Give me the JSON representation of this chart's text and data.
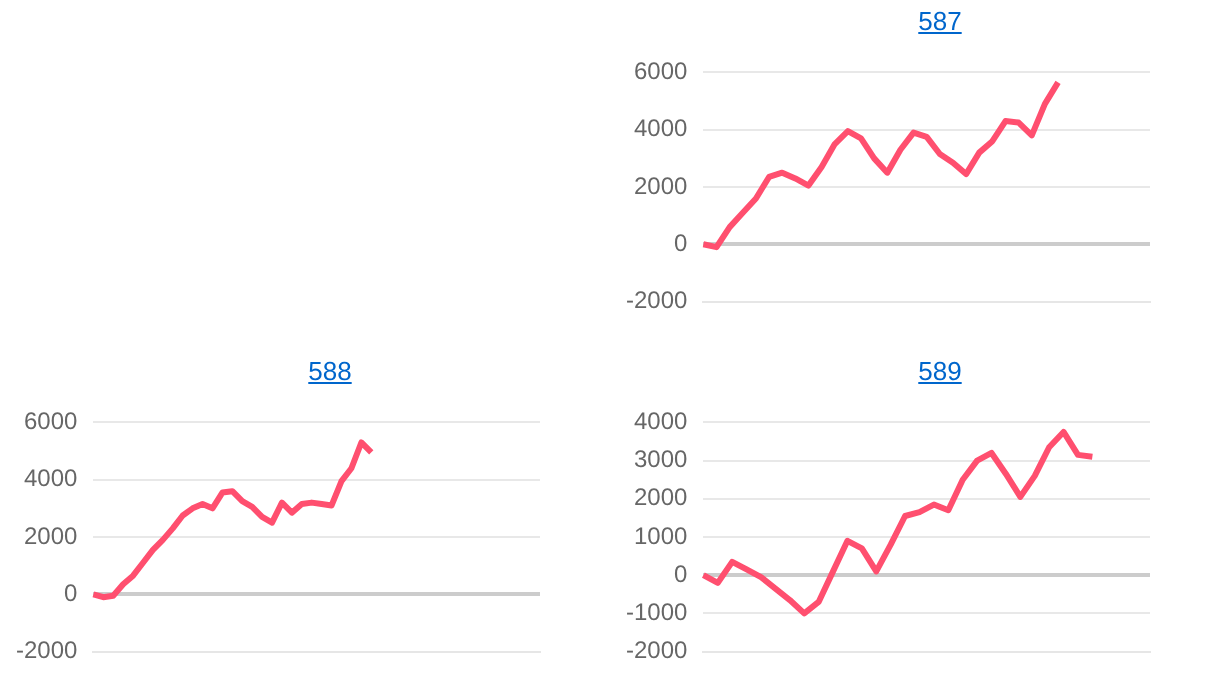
{
  "chart_data": [
    {
      "type": "line",
      "title": "587",
      "categories": [
        null,
        null,
        null,
        null,
        null,
        null,
        null,
        null,
        null,
        null,
        null,
        null,
        null,
        null,
        null,
        null,
        null,
        null,
        null,
        null,
        null,
        null,
        null,
        null,
        null,
        null,
        null,
        null,
        null,
        null,
        null,
        null,
        null,
        null,
        null
      ],
      "series": [
        {
          "color": "#ff4f6f",
          "values": [
            0,
            -100,
            600,
            1100,
            1600,
            2350,
            2500,
            2300,
            2050,
            2700,
            3500,
            3950,
            3700,
            3000,
            2500,
            3300,
            3900,
            3750,
            3150,
            2850,
            2450,
            3200,
            3600,
            4300,
            4250,
            3800,
            4900,
            5650,
            null,
            null,
            null,
            null,
            null,
            null,
            null
          ]
        }
      ],
      "ylim": [
        -2000,
        6000
      ],
      "yticks": [
        -2000,
        0,
        2000,
        4000,
        6000
      ],
      "grid": "y",
      "tick_labels": "y",
      "marker": "none"
    },
    {
      "type": "line",
      "title": "588",
      "categories": [
        null,
        null,
        null,
        null,
        null,
        null,
        null,
        null,
        null,
        null,
        null,
        null,
        null,
        null,
        null,
        null,
        null,
        null,
        null,
        null,
        null,
        null,
        null,
        null,
        null,
        null,
        null,
        null,
        null,
        null,
        null,
        null,
        null,
        null,
        null,
        null,
        null,
        null,
        null,
        null,
        null,
        null,
        null,
        null,
        null,
        null
      ],
      "series": [
        {
          "color": "#ff4f6f",
          "values": [
            0,
            -100,
            -50,
            350,
            650,
            1100,
            1550,
            1900,
            2300,
            2750,
            3000,
            3150,
            3000,
            3550,
            3600,
            3250,
            3050,
            2700,
            2500,
            3200,
            2850,
            3150,
            3200,
            3150,
            3100,
            3950,
            4400,
            5300,
            4950,
            null,
            null,
            null,
            null,
            null,
            null,
            null,
            null,
            null,
            null,
            null,
            null,
            null,
            null,
            null,
            null,
            null
          ]
        }
      ],
      "ylim": [
        -2000,
        6000
      ],
      "yticks": [
        -2000,
        0,
        2000,
        4000,
        6000
      ],
      "grid": "y",
      "tick_labels": "y",
      "marker": "none"
    },
    {
      "type": "line",
      "title": "589",
      "categories": [
        null,
        null,
        null,
        null,
        null,
        null,
        null,
        null,
        null,
        null,
        null,
        null,
        null,
        null,
        null,
        null,
        null,
        null,
        null,
        null,
        null,
        null,
        null,
        null,
        null,
        null,
        null,
        null,
        null,
        null,
        null,
        null
      ],
      "series": [
        {
          "color": "#ff4f6f",
          "values": [
            0,
            -200,
            350,
            150,
            -50,
            -350,
            -650,
            -1000,
            -700,
            100,
            900,
            700,
            100,
            800,
            1550,
            1650,
            1850,
            1700,
            2500,
            3000,
            3200,
            2650,
            2050,
            2600,
            3350,
            3750,
            3150,
            3100,
            null,
            null,
            null,
            null
          ]
        }
      ],
      "ylim": [
        -2000,
        4000
      ],
      "yticks": [
        -2000,
        -1000,
        0,
        1000,
        2000,
        3000,
        4000
      ],
      "grid": "y",
      "tick_labels": "y",
      "marker": "none"
    }
  ]
}
